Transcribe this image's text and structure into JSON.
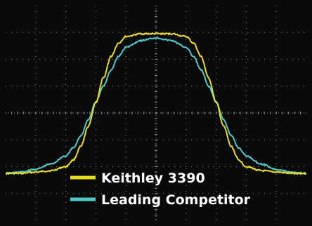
{
  "chart_data": {
    "type": "line",
    "grid": true,
    "background_color": "#0a0a0a",
    "grid_color": "#8a8a8a",
    "x": [
      -5,
      -4.5,
      -4,
      -3.5,
      -3,
      -2.75,
      -2.5,
      -2.25,
      -2,
      -1.75,
      -1.5,
      -1.25,
      -1,
      -0.5,
      0,
      0.5,
      1,
      1.25,
      1.5,
      1.75,
      2,
      2.25,
      2.5,
      2.75,
      3,
      3.5,
      4,
      4.5,
      5
    ],
    "xlim": [
      -5,
      5
    ],
    "ylim": [
      -4,
      4
    ],
    "series": [
      {
        "name": "Keithley 3390",
        "color": "#e8dc1e",
        "values": [
          -2.25,
          -2.25,
          -2.2,
          -2.15,
          -2.0,
          -1.75,
          -1.25,
          -0.5,
          0.4,
          1.3,
          2.1,
          2.6,
          2.85,
          2.95,
          2.95,
          2.95,
          2.85,
          2.6,
          2.1,
          1.3,
          0.4,
          -0.5,
          -1.25,
          -1.75,
          -2.0,
          -2.15,
          -2.2,
          -2.25,
          -2.25
        ]
      },
      {
        "name": "Leading Competitor",
        "color": "#4ec9c9",
        "values": [
          -2.25,
          -2.2,
          -2.1,
          -1.9,
          -1.6,
          -1.3,
          -0.85,
          -0.25,
          0.4,
          1.0,
          1.6,
          2.1,
          2.45,
          2.7,
          2.8,
          2.7,
          2.45,
          2.1,
          1.6,
          1.0,
          0.4,
          -0.25,
          -0.85,
          -1.3,
          -1.6,
          -1.9,
          -2.1,
          -2.2,
          -2.25
        ]
      }
    ],
    "legend": {
      "placement": "bottom-left",
      "entries": [
        "Keithley 3390",
        "Leading Competitor"
      ]
    }
  }
}
